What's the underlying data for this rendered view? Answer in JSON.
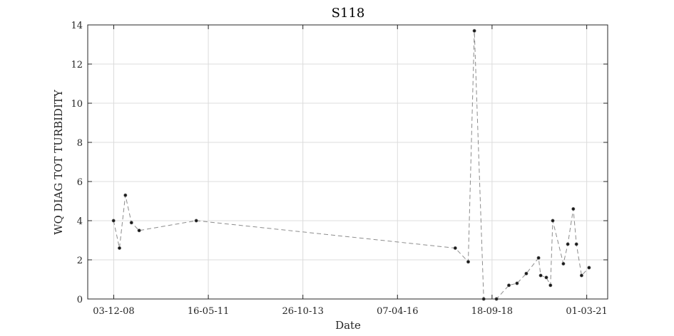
{
  "chart_data": {
    "type": "line",
    "title": "S118",
    "xlabel": "Date",
    "ylabel": "WQ DIAG TOT TURBIDITY",
    "grid": true,
    "legend": "none",
    "x_axis": {
      "kind": "date",
      "date_format": "DD-MM-YY",
      "range": [
        "2008-04-01",
        "2021-09-15"
      ],
      "ticks": [
        "2008-12-03",
        "2011-05-16",
        "2013-10-26",
        "2016-04-07",
        "2018-09-18",
        "2021-03-01"
      ],
      "tick_labels": [
        "03-12-08",
        "16-05-11",
        "26-10-13",
        "07-04-16",
        "18-09-18",
        "01-03-21"
      ]
    },
    "y_axis": {
      "range": [
        0,
        14
      ],
      "ticks": [
        0,
        2,
        4,
        6,
        8,
        10,
        12,
        14
      ],
      "tick_labels": [
        "0",
        "2",
        "4",
        "6",
        "8",
        "10",
        "12",
        "14"
      ]
    },
    "series": [
      {
        "line_style": "dashed",
        "line_color": "#8c8c8c",
        "marker_color": "#1a1a1a",
        "points": [
          {
            "x": "2008-12-01",
            "y": 4.0
          },
          {
            "x": "2009-01-26",
            "y": 2.6
          },
          {
            "x": "2009-03-23",
            "y": 5.3
          },
          {
            "x": "2009-05-19",
            "y": 3.9
          },
          {
            "x": "2009-07-31",
            "y": 3.5
          },
          {
            "x": "2011-01-22",
            "y": 4.0
          },
          {
            "x": "2017-10-05",
            "y": 2.6
          },
          {
            "x": "2018-02-05",
            "y": 1.9
          },
          {
            "x": "2018-04-04",
            "y": 13.7
          },
          {
            "x": "2018-07-01",
            "y": 0.0
          },
          {
            "x": "2018-10-30",
            "y": 0.0
          },
          {
            "x": "2019-02-24",
            "y": 0.7
          },
          {
            "x": "2019-05-12",
            "y": 0.8
          },
          {
            "x": "2019-08-08",
            "y": 1.3
          },
          {
            "x": "2019-12-02",
            "y": 2.1
          },
          {
            "x": "2019-12-22",
            "y": 1.2
          },
          {
            "x": "2020-02-13",
            "y": 1.1
          },
          {
            "x": "2020-03-23",
            "y": 0.7
          },
          {
            "x": "2020-04-14",
            "y": 4.0
          },
          {
            "x": "2020-07-23",
            "y": 1.8
          },
          {
            "x": "2020-09-03",
            "y": 2.8
          },
          {
            "x": "2020-10-25",
            "y": 4.6
          },
          {
            "x": "2020-11-24",
            "y": 2.8
          },
          {
            "x": "2021-01-11",
            "y": 1.2
          },
          {
            "x": "2021-03-23",
            "y": 1.6
          }
        ]
      }
    ]
  }
}
